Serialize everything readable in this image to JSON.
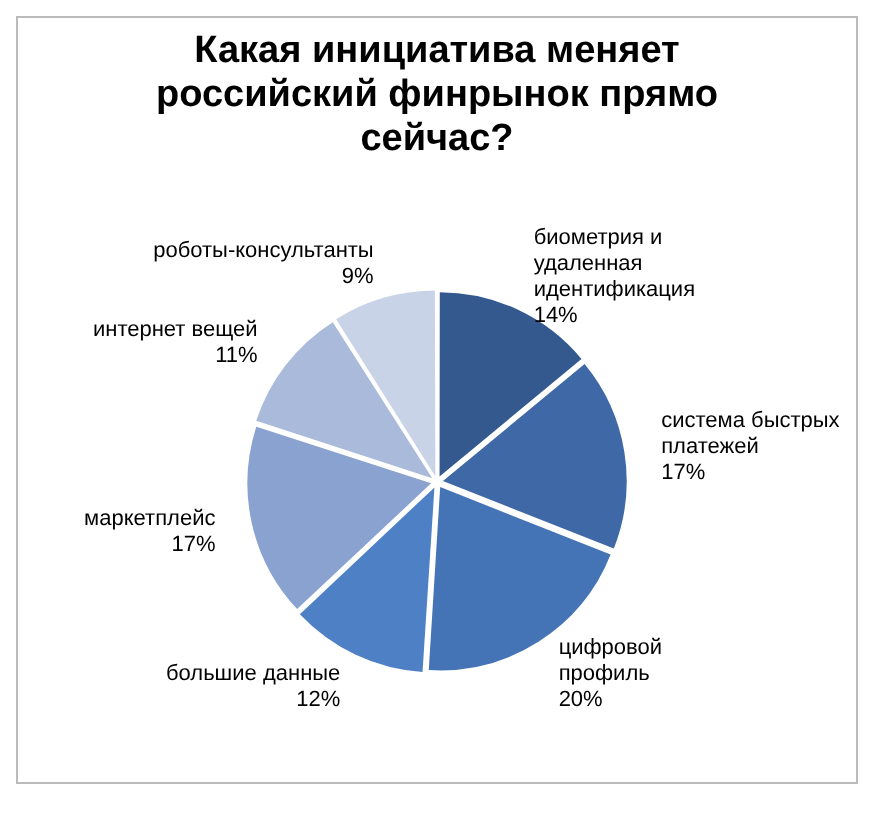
{
  "chart_data": {
    "type": "pie",
    "title": "Какая инициатива меняет российский финрынок прямо сейчас?",
    "categories": [
      "биометрия и удаленная идентификация",
      "система быстрых платежей",
      "цифровой профиль",
      "большие данные",
      "маркетплейс",
      "интернет вещей",
      "роботы-консультанты"
    ],
    "values": [
      14,
      17,
      20,
      12,
      17,
      11,
      9
    ],
    "value_labels": [
      "14%",
      "17%",
      "20%",
      "12%",
      "17%",
      "11%",
      "9%"
    ],
    "colors": [
      "#34598f",
      "#3f69a6",
      "#4474b6",
      "#4e80c6",
      "#8aa2cf",
      "#a9badb",
      "#c9d3e8"
    ],
    "legend": false
  }
}
